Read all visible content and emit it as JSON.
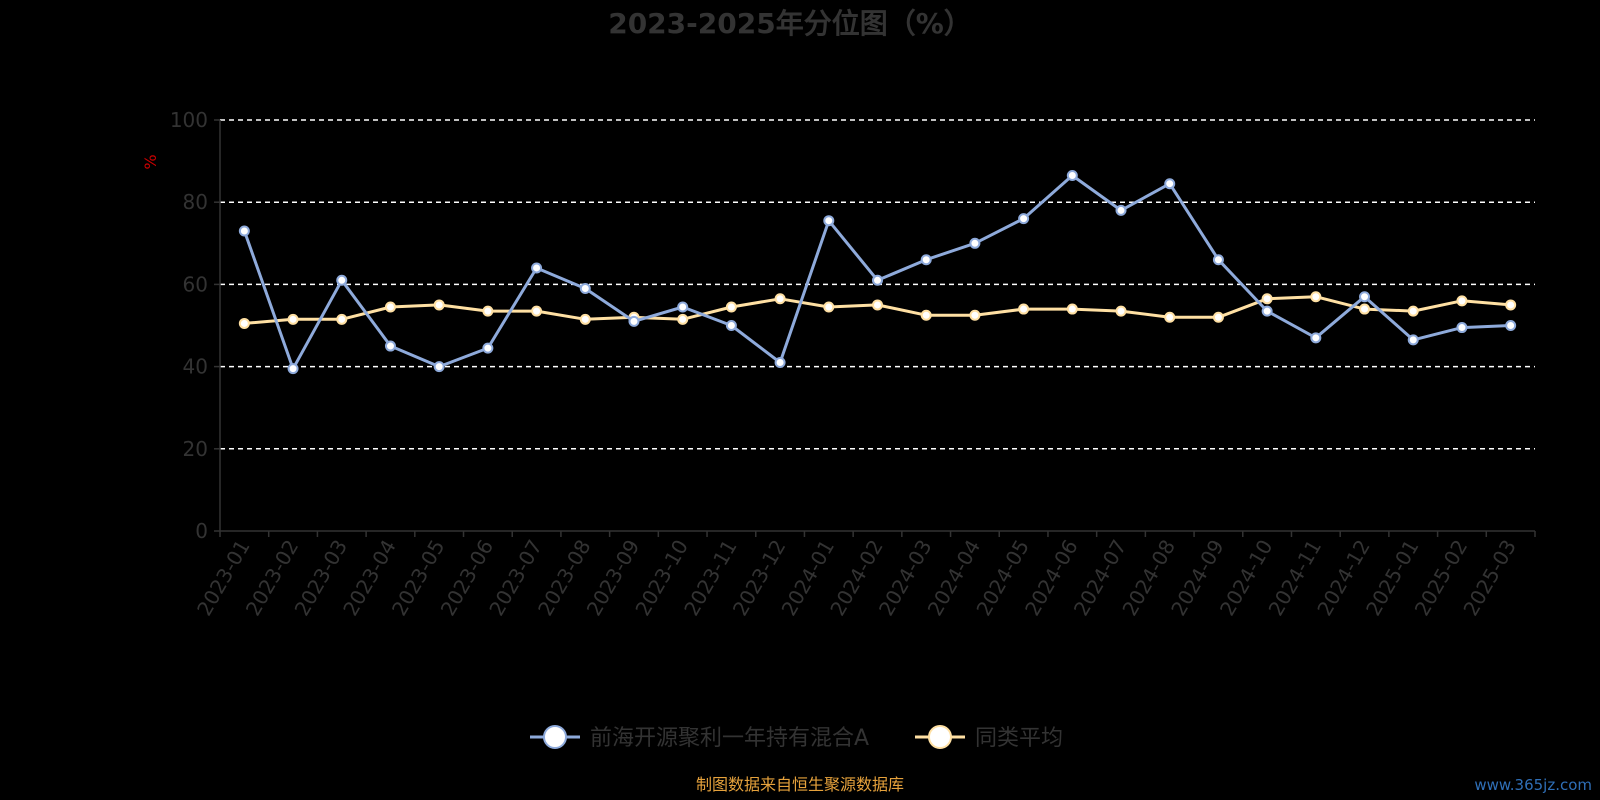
{
  "chart_data": {
    "type": "line",
    "title": "2023-2025年分位图（%）",
    "ylabel": "%",
    "ylim": [
      0,
      100
    ],
    "yticks": [
      0,
      20,
      40,
      60,
      80,
      100
    ],
    "grid": true,
    "legend_position": "bottom",
    "categories": [
      "2023-01",
      "2023-02",
      "2023-03",
      "2023-04",
      "2023-05",
      "2023-06",
      "2023-07",
      "2023-08",
      "2023-09",
      "2023-10",
      "2023-11",
      "2023-12",
      "2024-01",
      "2024-02",
      "2024-03",
      "2024-04",
      "2024-05",
      "2024-06",
      "2024-07",
      "2024-08",
      "2024-09",
      "2024-10",
      "2024-11",
      "2024-12",
      "2025-01",
      "2025-02",
      "2025-03"
    ],
    "series": [
      {
        "name": "前海开源聚利一年持有混合A",
        "color": "#8eaadb",
        "values": [
          73,
          39.5,
          61,
          45,
          40,
          44.5,
          64,
          59,
          51,
          54.5,
          50,
          41,
          75.5,
          61,
          66,
          70,
          76,
          86.5,
          78,
          84.5,
          66,
          53.5,
          47,
          57,
          46.5,
          49.5,
          50
        ]
      },
      {
        "name": "同类平均",
        "color": "#ffe0a3",
        "values": [
          50.5,
          51.5,
          51.5,
          54.5,
          55,
          53.5,
          53.5,
          51.5,
          52,
          51.5,
          54.5,
          56.5,
          54.5,
          55,
          52.5,
          52.5,
          54,
          54,
          53.5,
          52,
          52,
          56.5,
          57,
          54,
          53.5,
          56,
          55
        ]
      }
    ]
  },
  "footer": {
    "source": "制图数据来自恒生聚源数据库",
    "watermark": "www.365jz.com"
  },
  "colors": {
    "background": "#000000",
    "text": "#333333",
    "grid": "#ffffff",
    "axis": "#333333",
    "unit": "#cc0000",
    "source": "#e6a23c",
    "watermark": "#2f6fb7"
  }
}
